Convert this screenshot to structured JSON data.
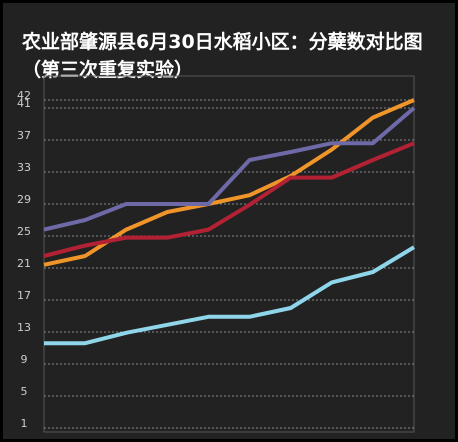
{
  "chart_data": {
    "type": "line",
    "title": "农业部肇源县6月30日水稻小区：分蘖数对比图（第三次重复实验）",
    "categories": [
      null,
      null,
      null,
      null,
      null,
      null,
      null,
      null,
      null,
      null
    ],
    "series": [
      {
        "color": "#f0952a",
        "values": [
          21.4,
          22.5,
          25.8,
          28,
          29,
          30.1,
          32.5,
          35.8,
          39.8,
          42
        ]
      },
      {
        "color": "#6e6aa8",
        "values": [
          25.8,
          27,
          29,
          29,
          29,
          34.5,
          35.5,
          36.6,
          36.6,
          41
        ]
      },
      {
        "color": "#b22234",
        "values": [
          22.5,
          23.8,
          24.8,
          24.8,
          25.8,
          28.9,
          32.3,
          32.3,
          34.5,
          36.6
        ]
      },
      {
        "color": "#8fd6ea",
        "values": [
          11.6,
          11.6,
          12.9,
          13.9,
          14.9,
          14.9,
          16,
          19.2,
          20.5,
          23.6
        ]
      }
    ],
    "ylim": [
      1,
      42
    ],
    "yticks": [
      1,
      5,
      9,
      13,
      17,
      21,
      25,
      29,
      33,
      37,
      41,
      42
    ],
    "grid": true
  }
}
